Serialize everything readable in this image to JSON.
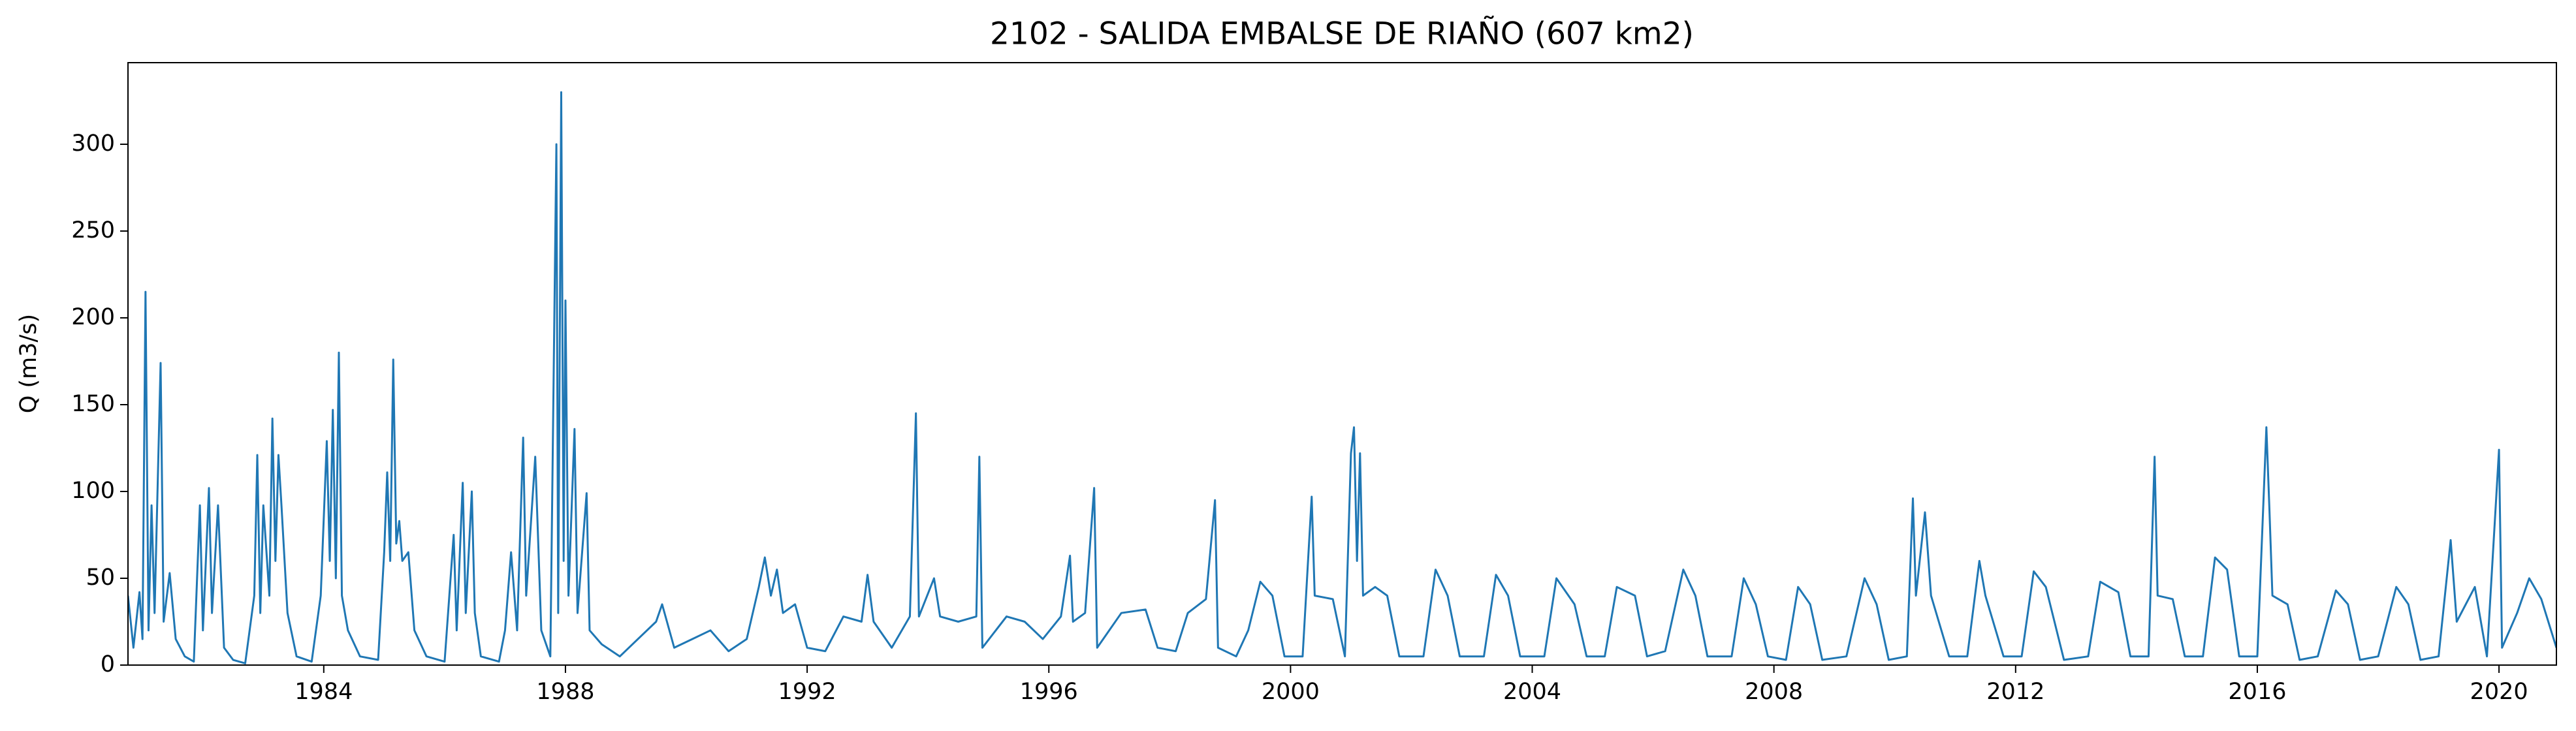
{
  "chart_data": {
    "type": "line",
    "title": "2102 - SALIDA EMBALSE DE RIAÑO (607 km2)",
    "ylabel": "Q (m3/s)",
    "color": "#1f77b4",
    "xlim": [
      1980.76,
      2020.95
    ],
    "ylim": [
      0,
      347
    ],
    "xticks": [
      1984,
      1988,
      1992,
      1996,
      2000,
      2004,
      2008,
      2012,
      2016,
      2020
    ],
    "yticks": [
      0,
      50,
      100,
      150,
      200,
      250,
      300
    ],
    "grid": false,
    "x": [
      1980.76,
      1980.85,
      1980.95,
      1981.0,
      1981.05,
      1981.1,
      1981.15,
      1981.2,
      1981.3,
      1981.35,
      1981.45,
      1981.55,
      1981.7,
      1981.85,
      1981.95,
      1982.0,
      1982.1,
      1982.15,
      1982.25,
      1982.35,
      1982.5,
      1982.7,
      1982.85,
      1982.9,
      1982.95,
      1983.0,
      1983.1,
      1983.15,
      1983.2,
      1983.25,
      1983.3,
      1983.4,
      1983.55,
      1983.8,
      1983.95,
      1984.05,
      1984.1,
      1984.15,
      1984.2,
      1984.25,
      1984.3,
      1984.4,
      1984.6,
      1984.9,
      1985.0,
      1985.05,
      1985.1,
      1985.15,
      1985.2,
      1985.25,
      1985.3,
      1985.4,
      1985.5,
      1985.7,
      1986.0,
      1986.15,
      1986.2,
      1986.3,
      1986.35,
      1986.45,
      1986.5,
      1986.6,
      1986.9,
      1987.0,
      1987.1,
      1987.2,
      1987.3,
      1987.35,
      1987.5,
      1987.6,
      1987.75,
      1987.85,
      1987.88,
      1987.93,
      1987.97,
      1988.0,
      1988.05,
      1988.15,
      1988.2,
      1988.35,
      1988.4,
      1988.6,
      1988.9,
      1989.2,
      1989.5,
      1989.6,
      1989.8,
      1990.1,
      1990.4,
      1990.7,
      1991.0,
      1991.2,
      1991.3,
      1991.4,
      1991.5,
      1991.6,
      1991.8,
      1992.0,
      1992.3,
      1992.6,
      1992.9,
      1993.0,
      1993.1,
      1993.4,
      1993.7,
      1993.8,
      1993.85,
      1994.1,
      1994.2,
      1994.5,
      1994.8,
      1994.85,
      1994.9,
      1995.3,
      1995.6,
      1995.9,
      1996.2,
      1996.35,
      1996.4,
      1996.6,
      1996.75,
      1996.8,
      1997.2,
      1997.6,
      1997.8,
      1998.1,
      1998.3,
      1998.6,
      1998.75,
      1998.8,
      1999.1,
      1999.3,
      1999.5,
      1999.7,
      1999.9,
      2000.2,
      2000.35,
      2000.4,
      2000.7,
      2000.9,
      2001.0,
      2001.05,
      2001.1,
      2001.15,
      2001.2,
      2001.4,
      2001.6,
      2001.8,
      2002.2,
      2002.4,
      2002.6,
      2002.8,
      2003.2,
      2003.4,
      2003.6,
      2003.8,
      2004.2,
      2004.4,
      2004.7,
      2004.9,
      2005.2,
      2005.4,
      2005.7,
      2005.9,
      2006.2,
      2006.5,
      2006.7,
      2006.9,
      2007.3,
      2007.5,
      2007.7,
      2007.9,
      2008.2,
      2008.4,
      2008.6,
      2008.8,
      2009.2,
      2009.5,
      2009.7,
      2009.9,
      2010.2,
      2010.3,
      2010.35,
      2010.5,
      2010.6,
      2010.9,
      2011.2,
      2011.4,
      2011.5,
      2011.8,
      2012.1,
      2012.3,
      2012.5,
      2012.8,
      2013.2,
      2013.4,
      2013.7,
      2013.9,
      2014.2,
      2014.3,
      2014.35,
      2014.6,
      2014.8,
      2015.1,
      2015.3,
      2015.5,
      2015.7,
      2016.0,
      2016.15,
      2016.2,
      2016.25,
      2016.5,
      2016.7,
      2017.0,
      2017.3,
      2017.5,
      2017.7,
      2018.0,
      2018.3,
      2018.5,
      2018.7,
      2019.0,
      2019.2,
      2019.3,
      2019.6,
      2019.8,
      2020.0,
      2020.05,
      2020.3,
      2020.5,
      2020.7,
      2020.95
    ],
    "values": [
      40,
      10,
      42,
      15,
      215,
      20,
      92,
      30,
      174,
      25,
      53,
      15,
      5,
      2,
      92,
      20,
      102,
      30,
      92,
      10,
      3,
      1,
      40,
      121,
      30,
      92,
      40,
      142,
      60,
      121,
      92,
      30,
      5,
      2,
      40,
      129,
      60,
      147,
      50,
      180,
      40,
      20,
      5,
      3,
      65,
      111,
      60,
      176,
      70,
      83,
      60,
      65,
      20,
      5,
      2,
      75,
      20,
      105,
      30,
      100,
      30,
      5,
      2,
      20,
      65,
      20,
      131,
      40,
      120,
      20,
      5,
      300,
      30,
      330,
      60,
      210,
      40,
      136,
      30,
      99,
      20,
      12,
      5,
      15,
      25,
      35,
      10,
      15,
      20,
      8,
      15,
      45,
      62,
      40,
      55,
      30,
      35,
      10,
      8,
      28,
      25,
      52,
      25,
      10,
      28,
      145,
      28,
      50,
      28,
      25,
      28,
      120,
      10,
      28,
      25,
      15,
      28,
      63,
      25,
      30,
      102,
      10,
      30,
      32,
      10,
      8,
      30,
      38,
      95,
      10,
      5,
      20,
      48,
      40,
      5,
      5,
      97,
      40,
      38,
      5,
      122,
      137,
      60,
      122,
      40,
      45,
      40,
      5,
      5,
      55,
      40,
      5,
      5,
      52,
      40,
      5,
      5,
      50,
      35,
      5,
      5,
      45,
      40,
      5,
      8,
      55,
      40,
      5,
      5,
      50,
      35,
      5,
      3,
      45,
      35,
      3,
      5,
      50,
      35,
      3,
      5,
      96,
      40,
      88,
      40,
      5,
      5,
      60,
      40,
      5,
      5,
      54,
      45,
      3,
      5,
      48,
      42,
      5,
      5,
      120,
      40,
      38,
      5,
      5,
      62,
      55,
      5,
      5,
      137,
      90,
      40,
      35,
      3,
      5,
      43,
      35,
      3,
      5,
      45,
      35,
      3,
      5,
      72,
      25,
      45,
      5,
      124,
      10,
      30,
      50,
      38,
      10
    ]
  }
}
